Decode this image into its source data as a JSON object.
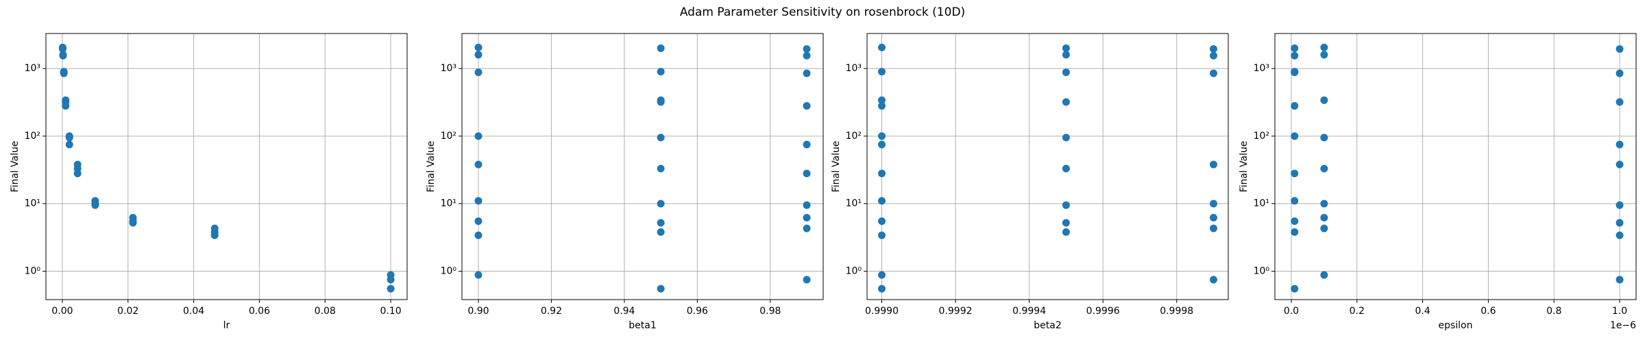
{
  "title": "Adam Parameter Sensitivity on rosenbrock (10D)",
  "chart_data": [
    {
      "type": "scatter",
      "xlabel": "lr",
      "ylabel": "Final Value",
      "color": "#1f77b4",
      "yscale": "log",
      "grid": true,
      "x": [
        0.0001,
        0.0001,
        0.0001,
        0.000215,
        0.000215,
        0.000464,
        0.000464,
        0.000464,
        0.001,
        0.001,
        0.001,
        0.00215,
        0.00215,
        0.00215,
        0.00464,
        0.00464,
        0.00464,
        0.01,
        0.01,
        0.01,
        0.0215,
        0.0215,
        0.0215,
        0.0464,
        0.0464,
        0.0464,
        0.1,
        0.1,
        0.1
      ],
      "values": [
        2050,
        2000,
        1950,
        1600,
        1550,
        900,
        850,
        880,
        340,
        320,
        280,
        100,
        95,
        75,
        38,
        33,
        28,
        11,
        10,
        9.5,
        6.2,
        5.5,
        5.2,
        4.3,
        3.8,
        3.4,
        0.88,
        0.75,
        0.55
      ],
      "xlim": [
        -0.005,
        0.105
      ],
      "ylim": [
        0.38,
        3300
      ],
      "xticks": [
        {
          "value": 0,
          "label": "0.00"
        },
        {
          "value": 0.02,
          "label": "0.02"
        },
        {
          "value": 0.04,
          "label": "0.04"
        },
        {
          "value": 0.06,
          "label": "0.06"
        },
        {
          "value": 0.08,
          "label": "0.08"
        },
        {
          "value": 0.1,
          "label": "0.10"
        }
      ],
      "yticks": [
        {
          "value": 1,
          "label": "10⁰"
        },
        {
          "value": 10,
          "label": "10¹"
        },
        {
          "value": 100,
          "label": "10²"
        },
        {
          "value": 1000,
          "label": "10³"
        }
      ]
    },
    {
      "type": "scatter",
      "xlabel": "beta1",
      "ylabel": "Final Value",
      "color": "#1f77b4",
      "yscale": "log",
      "grid": true,
      "x": [
        0.9,
        0.95,
        0.99,
        0.9,
        0.99,
        0.95,
        0.99,
        0.9,
        0.95,
        0.95,
        0.99,
        0.9,
        0.95,
        0.99,
        0.9,
        0.95,
        0.99,
        0.9,
        0.95,
        0.99,
        0.99,
        0.9,
        0.95,
        0.99,
        0.95,
        0.9,
        0.9,
        0.99,
        0.95
      ],
      "values": [
        2050,
        2000,
        1950,
        1600,
        1550,
        900,
        850,
        880,
        340,
        320,
        280,
        100,
        95,
        75,
        38,
        33,
        28,
        11,
        10,
        9.5,
        6.2,
        5.5,
        5.2,
        4.3,
        3.8,
        3.4,
        0.88,
        0.75,
        0.55
      ],
      "xlim": [
        0.8955,
        0.9945
      ],
      "ylim": [
        0.38,
        3300
      ],
      "xticks": [
        {
          "value": 0.9,
          "label": "0.90"
        },
        {
          "value": 0.92,
          "label": "0.92"
        },
        {
          "value": 0.94,
          "label": "0.94"
        },
        {
          "value": 0.96,
          "label": "0.96"
        },
        {
          "value": 0.98,
          "label": "0.98"
        }
      ],
      "yticks": [
        {
          "value": 1,
          "label": "10⁰"
        },
        {
          "value": 10,
          "label": "10¹"
        },
        {
          "value": 100,
          "label": "10²"
        },
        {
          "value": 1000,
          "label": "10³"
        }
      ]
    },
    {
      "type": "scatter",
      "xlabel": "beta2",
      "ylabel": "Final Value",
      "color": "#1f77b4",
      "yscale": "log",
      "grid": true,
      "x": [
        0.999,
        0.9995,
        0.9999,
        0.9995,
        0.9999,
        0.999,
        0.9999,
        0.9995,
        0.999,
        0.9995,
        0.999,
        0.999,
        0.9995,
        0.999,
        0.9999,
        0.9995,
        0.999,
        0.999,
        0.9999,
        0.9995,
        0.9999,
        0.999,
        0.9995,
        0.9999,
        0.9995,
        0.999,
        0.999,
        0.9999,
        0.999
      ],
      "values": [
        2050,
        2000,
        1950,
        1600,
        1550,
        900,
        850,
        880,
        340,
        320,
        280,
        100,
        95,
        75,
        38,
        33,
        28,
        11,
        10,
        9.5,
        6.2,
        5.5,
        5.2,
        4.3,
        3.8,
        3.4,
        0.88,
        0.75,
        0.55
      ],
      "xlim": [
        0.99896,
        0.99994
      ],
      "ylim": [
        0.38,
        3300
      ],
      "xticks": [
        {
          "value": 0.999,
          "label": "0.9990"
        },
        {
          "value": 0.9992,
          "label": "0.9992"
        },
        {
          "value": 0.9994,
          "label": "0.9994"
        },
        {
          "value": 0.9996,
          "label": "0.9996"
        },
        {
          "value": 0.9998,
          "label": "0.9998"
        }
      ],
      "yticks": [
        {
          "value": 1,
          "label": "10⁰"
        },
        {
          "value": 10,
          "label": "10¹"
        },
        {
          "value": 100,
          "label": "10²"
        },
        {
          "value": 1000,
          "label": "10³"
        }
      ]
    },
    {
      "type": "scatter",
      "xlabel": "epsilon",
      "ylabel": "Final Value",
      "color": "#1f77b4",
      "yscale": "log",
      "grid": true,
      "offset_label": "1e−6",
      "x": [
        1e-07,
        1e-08,
        1e-06,
        1e-07,
        1e-08,
        1e-08,
        1e-06,
        1e-08,
        1e-07,
        1e-06,
        1e-08,
        1e-08,
        1e-07,
        1e-06,
        1e-06,
        1e-07,
        1e-08,
        1e-08,
        1e-07,
        1e-06,
        1e-07,
        1e-08,
        1e-06,
        1e-07,
        1e-08,
        1e-06,
        1e-07,
        1e-06,
        1e-08
      ],
      "values": [
        2050,
        2000,
        1950,
        1600,
        1550,
        900,
        850,
        880,
        340,
        320,
        280,
        100,
        95,
        75,
        38,
        33,
        28,
        11,
        10,
        9.5,
        6.2,
        5.5,
        5.2,
        4.3,
        3.8,
        3.4,
        0.88,
        0.75,
        0.55
      ],
      "xlim": [
        -5e-08,
        1.05e-06
      ],
      "ylim": [
        0.38,
        3300
      ],
      "xticks": [
        {
          "value": 0,
          "label": "0.0"
        },
        {
          "value": 2e-07,
          "label": "0.2"
        },
        {
          "value": 4e-07,
          "label": "0.4"
        },
        {
          "value": 6e-07,
          "label": "0.6"
        },
        {
          "value": 8e-07,
          "label": "0.8"
        },
        {
          "value": 1e-06,
          "label": "1.0"
        }
      ],
      "yticks": [
        {
          "value": 1,
          "label": "10⁰"
        },
        {
          "value": 10,
          "label": "10¹"
        },
        {
          "value": 100,
          "label": "10²"
        },
        {
          "value": 1000,
          "label": "10³"
        }
      ]
    }
  ]
}
